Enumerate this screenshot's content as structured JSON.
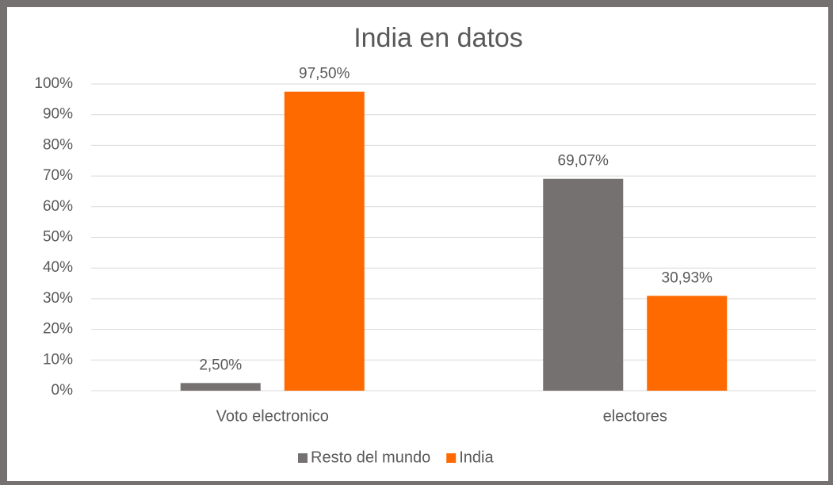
{
  "chart_data": {
    "type": "bar",
    "title": "India en datos",
    "categories": [
      "Voto electronico",
      "electores"
    ],
    "series": [
      {
        "name": "Resto del mundo",
        "color": "#767171",
        "values": [
          2.5,
          69.07
        ],
        "value_labels": [
          "2,50%",
          "69,07%"
        ]
      },
      {
        "name": "India",
        "color": "#ff6a00",
        "values": [
          97.5,
          30.93
        ],
        "value_labels": [
          "97,50%",
          "30,93%"
        ]
      }
    ],
    "ylim": [
      0,
      100
    ],
    "yticks": [
      {
        "value": 0,
        "label": "0%"
      },
      {
        "value": 10,
        "label": "10%"
      },
      {
        "value": 20,
        "label": "20%"
      },
      {
        "value": 30,
        "label": "30%"
      },
      {
        "value": 40,
        "label": "40%"
      },
      {
        "value": 50,
        "label": "50%"
      },
      {
        "value": 60,
        "label": "60%"
      },
      {
        "value": 70,
        "label": "70%"
      },
      {
        "value": 80,
        "label": "80%"
      },
      {
        "value": 90,
        "label": "90%"
      },
      {
        "value": 100,
        "label": "100%"
      }
    ],
    "grid": true,
    "legend": "bottom"
  }
}
